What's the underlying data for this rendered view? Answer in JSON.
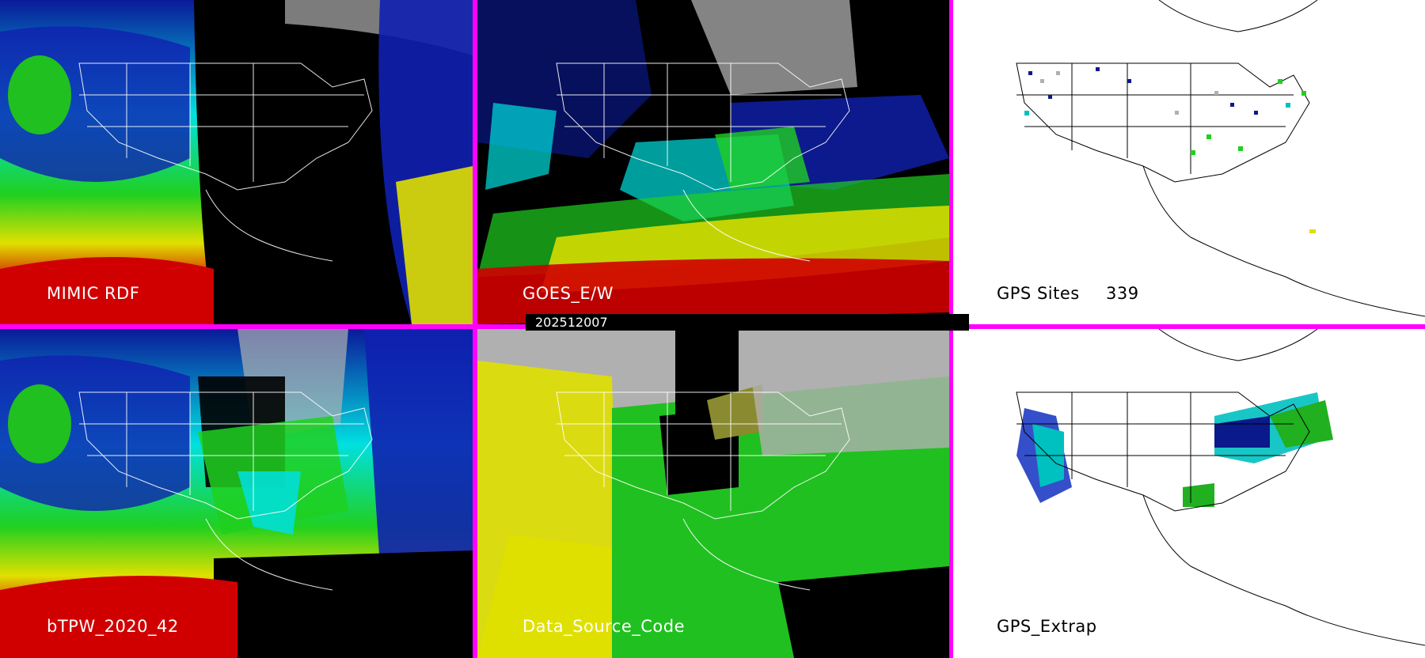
{
  "panels": {
    "mimic": {
      "label": "MIMIC RDF"
    },
    "goes": {
      "label": "GOES_E/W"
    },
    "gps_sites": {
      "label": "GPS Sites",
      "count": "339"
    },
    "btpw": {
      "label": "bTPW_2020_42"
    },
    "data_source": {
      "label": "Data_Source_Code"
    },
    "gps_extrap": {
      "label": "GPS_Extrap"
    }
  },
  "timestamp": "202512007",
  "colors": {
    "divider": "#ff00ff",
    "cyan": "#00e0e0",
    "blue": "#1030c0",
    "green": "#20d020",
    "yellow": "#e0e000",
    "red": "#c00000",
    "gray": "#b0b0b0"
  },
  "icons": [
    "map-outline-icon"
  ]
}
